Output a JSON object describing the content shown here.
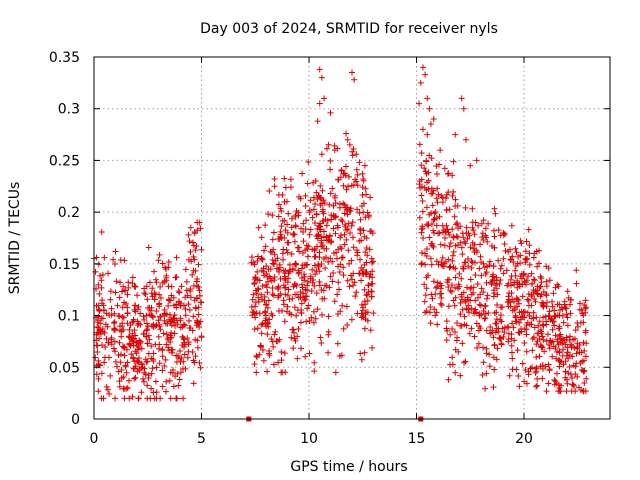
{
  "chart_data": {
    "type": "scatter",
    "title": "Day 003 of 2024, SRMTID for receiver nyls",
    "xlabel": "GPS time / hours",
    "ylabel": "SRMTID / TECUs",
    "xlim": [
      0,
      24
    ],
    "ylim": [
      0,
      0.35
    ],
    "x_ticks": [
      0,
      5,
      10,
      15,
      20
    ],
    "x_tick_labels": [
      "0",
      "5",
      "10",
      "15",
      "20"
    ],
    "y_ticks": [
      0,
      0.05,
      0.1,
      0.15,
      0.2,
      0.25,
      0.3,
      0.35
    ],
    "y_tick_labels": [
      "0",
      "0.05",
      "0.1",
      "0.15",
      "0.2",
      "0.25",
      "0.3",
      "0.35"
    ],
    "grid": true,
    "marker": "plus",
    "color": "#e00000",
    "zero_markers": [
      {
        "x": 7.2,
        "y": 0
      },
      {
        "x": 15.2,
        "y": 0
      }
    ],
    "segments": [
      {
        "start": 0.0,
        "end": 5.0,
        "low": 0.02,
        "high": 0.19,
        "profile": [
          [
            0,
            0.08
          ],
          [
            1,
            0.09
          ],
          [
            2,
            0.07
          ],
          [
            3,
            0.09
          ],
          [
            4,
            0.08
          ],
          [
            4.5,
            0.11
          ],
          [
            5,
            0.12
          ]
        ],
        "count": 520,
        "seed": 11
      },
      {
        "start": 7.3,
        "end": 13.0,
        "low": 0.045,
        "high": 0.34,
        "profile": [
          [
            7.3,
            0.11
          ],
          [
            8,
            0.12
          ],
          [
            9,
            0.14
          ],
          [
            10,
            0.15
          ],
          [
            11,
            0.17
          ],
          [
            12,
            0.19
          ],
          [
            12.5,
            0.16
          ],
          [
            13,
            0.13
          ]
        ],
        "count": 640,
        "seed": 29
      },
      {
        "start": 15.1,
        "end": 22.9,
        "low": 0.027,
        "high": 0.34,
        "profile": [
          [
            15.1,
            0.21
          ],
          [
            16,
            0.17
          ],
          [
            17,
            0.15
          ],
          [
            18,
            0.12
          ],
          [
            19,
            0.12
          ],
          [
            20,
            0.12
          ],
          [
            21,
            0.09
          ],
          [
            22,
            0.07
          ],
          [
            22.9,
            0.07
          ]
        ],
        "count": 820,
        "seed": 53
      }
    ],
    "peaks": [
      {
        "x": 10.5,
        "y": 0.338
      },
      {
        "x": 10.6,
        "y": 0.33
      },
      {
        "x": 10.5,
        "y": 0.305
      },
      {
        "x": 10.4,
        "y": 0.288
      },
      {
        "x": 10.7,
        "y": 0.31
      },
      {
        "x": 12.0,
        "y": 0.335
      },
      {
        "x": 12.1,
        "y": 0.328
      },
      {
        "x": 11.8,
        "y": 0.27
      },
      {
        "x": 11.9,
        "y": 0.265
      },
      {
        "x": 11.2,
        "y": 0.26
      },
      {
        "x": 12.6,
        "y": 0.245
      },
      {
        "x": 12.2,
        "y": 0.256
      },
      {
        "x": 8.4,
        "y": 0.232
      },
      {
        "x": 8.4,
        "y": 0.225
      },
      {
        "x": 10.6,
        "y": 0.256
      },
      {
        "x": 11.0,
        "y": 0.296
      },
      {
        "x": 11.5,
        "y": 0.24
      },
      {
        "x": 15.3,
        "y": 0.34
      },
      {
        "x": 15.4,
        "y": 0.333
      },
      {
        "x": 15.2,
        "y": 0.325
      },
      {
        "x": 15.5,
        "y": 0.31
      },
      {
        "x": 15.6,
        "y": 0.3
      },
      {
        "x": 15.3,
        "y": 0.28
      },
      {
        "x": 15.8,
        "y": 0.29
      },
      {
        "x": 15.5,
        "y": 0.275
      },
      {
        "x": 16.1,
        "y": 0.26
      },
      {
        "x": 17.1,
        "y": 0.31
      },
      {
        "x": 17.2,
        "y": 0.3
      },
      {
        "x": 16.8,
        "y": 0.275
      },
      {
        "x": 17.3,
        "y": 0.27
      },
      {
        "x": 17.8,
        "y": 0.25
      },
      {
        "x": 1.0,
        "y": 0.162
      },
      {
        "x": 4.5,
        "y": 0.185
      },
      {
        "x": 4.8,
        "y": 0.19
      },
      {
        "x": 4.4,
        "y": 0.178
      },
      {
        "x": 0.0,
        "y": 0.155
      }
    ]
  }
}
